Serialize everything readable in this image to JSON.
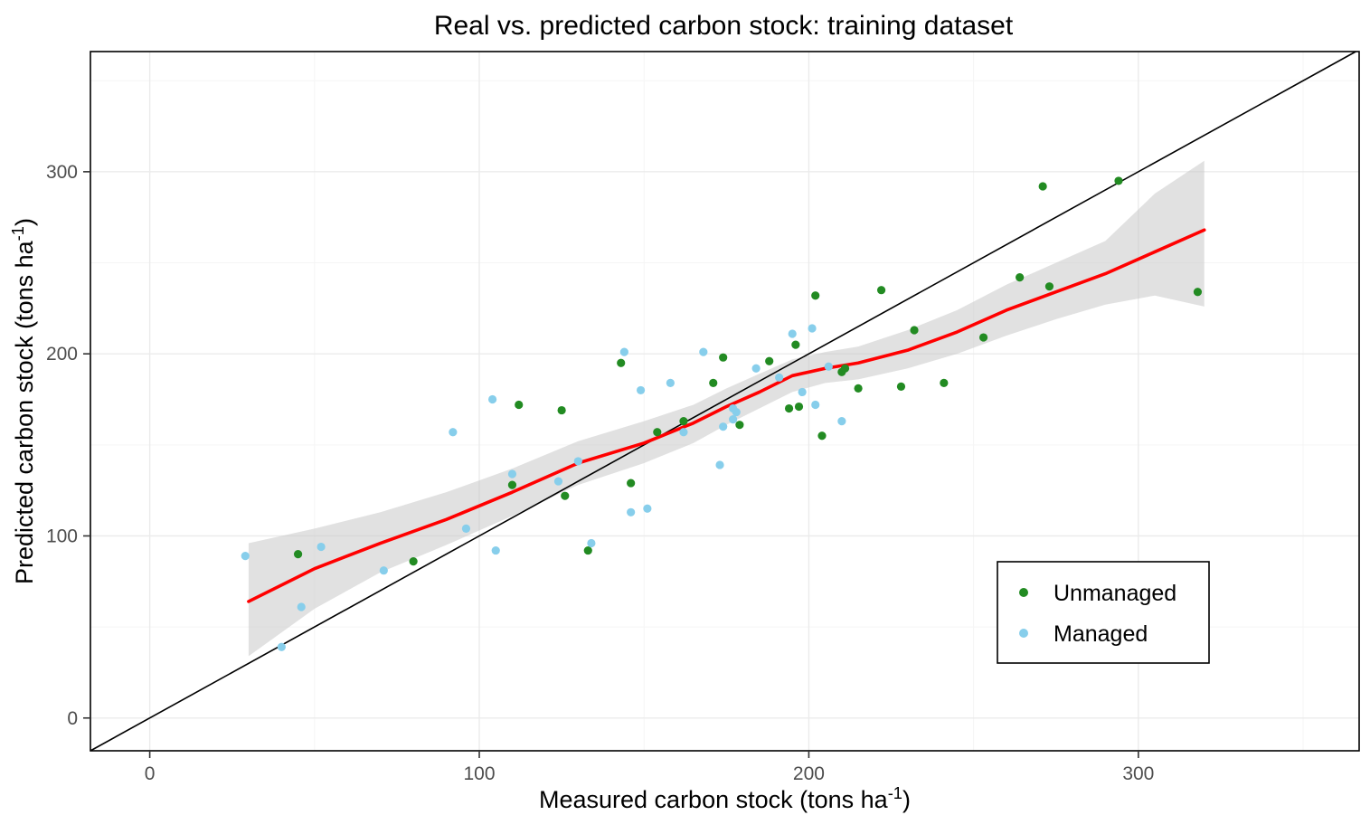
{
  "chart_data": {
    "type": "scatter",
    "title": "Real vs. predicted carbon stock: training dataset",
    "xlabel": {
      "main": "Measured carbon stock (tons ha",
      "sup": "-1",
      "end": ")"
    },
    "ylabel": {
      "main": "Predicted carbon stock (tons ha",
      "sup": "-1",
      "end": ")"
    },
    "xlim": [
      -18,
      367
    ],
    "ylim": [
      -18,
      366
    ],
    "x_major_ticks": [
      0,
      100,
      200,
      300
    ],
    "y_major_ticks": [
      0,
      100,
      200,
      300
    ],
    "x_minor_ticks": [
      50,
      150,
      250,
      350
    ],
    "y_minor_ticks": [
      50,
      150,
      250,
      350
    ],
    "grid": true,
    "colors": {
      "unmanaged": "#228B22",
      "managed": "#87CEEB",
      "smooth_line": "#FF0000",
      "identity_line": "#000000",
      "ribbon": "#c8c8c8",
      "grid_major": "#ebebeb",
      "grid_minor": "#f5f5f5",
      "panel_border": "#000000",
      "tick_label": "#4d4d4d",
      "text": "#000000"
    },
    "legend": {
      "position": "lower-right",
      "items": [
        {
          "label": "Unmanaged",
          "color": "#228B22"
        },
        {
          "label": "Managed",
          "color": "#87CEEB"
        }
      ]
    },
    "identity_line": {
      "from": -18,
      "to": 366
    },
    "smooth": {
      "x": [
        30,
        50,
        70,
        90,
        110,
        130,
        150,
        165,
        175,
        185,
        195,
        205,
        215,
        230,
        245,
        260,
        275,
        290,
        305,
        320
      ],
      "y": [
        64,
        82,
        96,
        109,
        124,
        140,
        151,
        162,
        171,
        179,
        188,
        192,
        195,
        202,
        212,
        224,
        234,
        244,
        256,
        268
      ],
      "lower": [
        34,
        60,
        80,
        95,
        111,
        128,
        140,
        151,
        161,
        170,
        179,
        184,
        186,
        192,
        200,
        210,
        219,
        227,
        232,
        226
      ],
      "upper": [
        96,
        104,
        113,
        124,
        137,
        152,
        163,
        172,
        181,
        189,
        197,
        201,
        204,
        213,
        224,
        238,
        250,
        262,
        288,
        306
      ]
    },
    "series": [
      {
        "name": "Unmanaged",
        "color": "#228B22",
        "points": [
          [
            45,
            90
          ],
          [
            80,
            86
          ],
          [
            110,
            128
          ],
          [
            112,
            172
          ],
          [
            125,
            169
          ],
          [
            126,
            122
          ],
          [
            133,
            92
          ],
          [
            143,
            195
          ],
          [
            146,
            129
          ],
          [
            154,
            157
          ],
          [
            162,
            163
          ],
          [
            171,
            184
          ],
          [
            174,
            198
          ],
          [
            179,
            161
          ],
          [
            188,
            196
          ],
          [
            194,
            170
          ],
          [
            196,
            205
          ],
          [
            197,
            171
          ],
          [
            202,
            232
          ],
          [
            204,
            155
          ],
          [
            210,
            190
          ],
          [
            211,
            192
          ],
          [
            215,
            181
          ],
          [
            222,
            235
          ],
          [
            228,
            182
          ],
          [
            232,
            213
          ],
          [
            241,
            184
          ],
          [
            253,
            209
          ],
          [
            264,
            242
          ],
          [
            271,
            292
          ],
          [
            273,
            237
          ],
          [
            294,
            295
          ],
          [
            318,
            234
          ]
        ]
      },
      {
        "name": "Managed",
        "color": "#87CEEB",
        "points": [
          [
            29,
            89
          ],
          [
            40,
            39
          ],
          [
            46,
            61
          ],
          [
            52,
            94
          ],
          [
            71,
            81
          ],
          [
            92,
            157
          ],
          [
            96,
            104
          ],
          [
            104,
            175
          ],
          [
            105,
            92
          ],
          [
            110,
            134
          ],
          [
            124,
            130
          ],
          [
            130,
            141
          ],
          [
            134,
            96
          ],
          [
            144,
            201
          ],
          [
            146,
            113
          ],
          [
            149,
            180
          ],
          [
            151,
            115
          ],
          [
            158,
            184
          ],
          [
            162,
            157
          ],
          [
            168,
            201
          ],
          [
            173,
            139
          ],
          [
            174,
            160
          ],
          [
            177,
            170
          ],
          [
            177,
            164
          ],
          [
            178,
            168
          ],
          [
            184,
            192
          ],
          [
            191,
            187
          ],
          [
            195,
            211
          ],
          [
            198,
            179
          ],
          [
            201,
            214
          ],
          [
            202,
            172
          ],
          [
            206,
            193
          ],
          [
            210,
            163
          ]
        ]
      }
    ]
  }
}
